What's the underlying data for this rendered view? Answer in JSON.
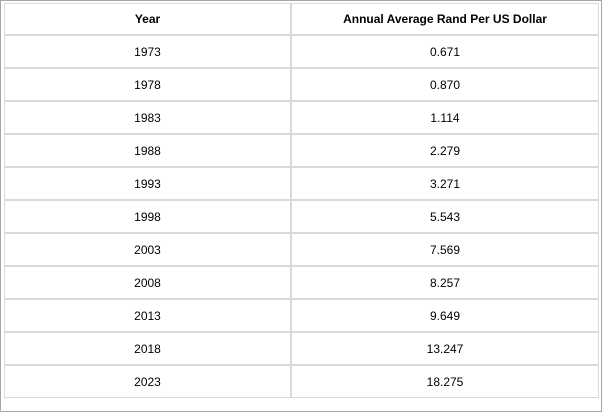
{
  "table": {
    "headers": [
      "Year",
      "Annual Average Rand Per US Dollar"
    ],
    "rows": [
      [
        "1973",
        "0.671"
      ],
      [
        "1978",
        "0.870"
      ],
      [
        "1983",
        "1.114"
      ],
      [
        "1988",
        "2.279"
      ],
      [
        "1993",
        "3.271"
      ],
      [
        "1998",
        "5.543"
      ],
      [
        "2003",
        "7.569"
      ],
      [
        "2008",
        "8.257"
      ],
      [
        "2013",
        "9.649"
      ],
      [
        "2018",
        "13.247"
      ],
      [
        "2023",
        "18.275"
      ]
    ]
  }
}
